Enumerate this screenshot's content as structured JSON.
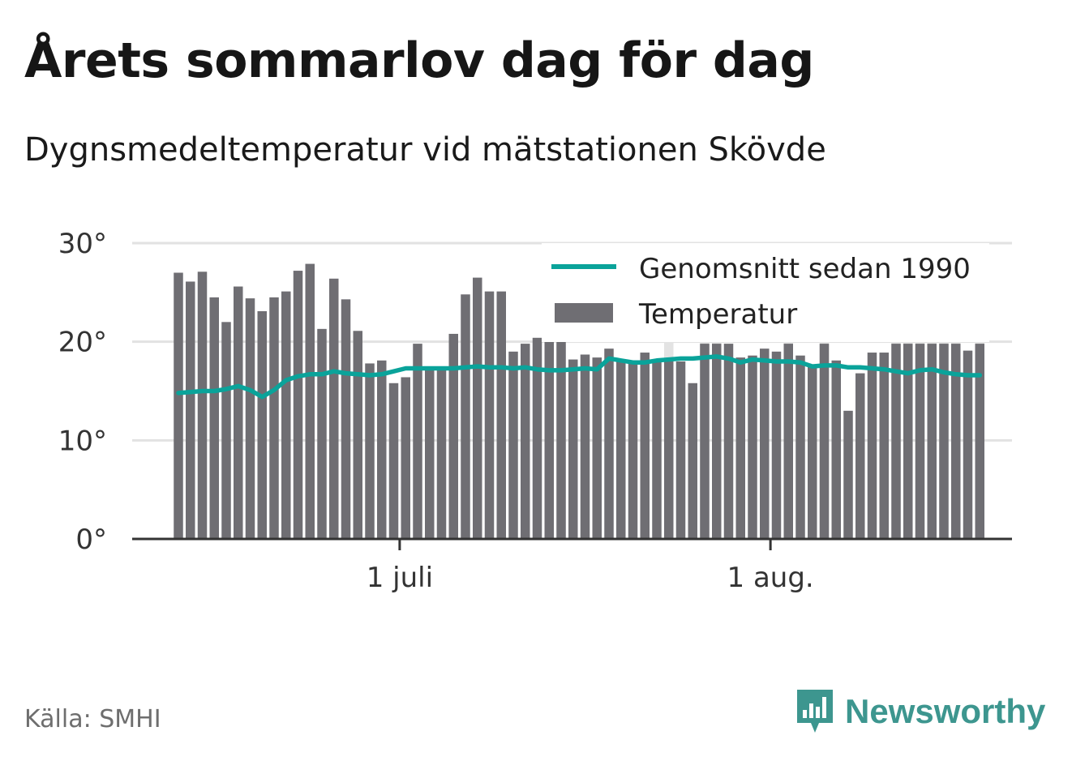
{
  "title": "Årets sommarlov dag för dag",
  "subtitle": "Dygnsmedeltemperatur vid mätstationen Skövde",
  "source": "Källa: SMHI",
  "brand": {
    "name": "Newsworthy",
    "icon": "newsworthy-logo-icon",
    "color": "#3d968f"
  },
  "colors": {
    "bar": "#6f6e73",
    "line": "#0aa39a",
    "ghost": "#e3e3e3",
    "grid": "#e2e2e2",
    "axis": "#333333"
  },
  "chart_data": {
    "type": "bar",
    "x_start": "2019-06-12",
    "yticks": [
      0,
      10,
      20,
      30
    ],
    "ytick_labels": [
      "0°",
      "10°",
      "20°",
      "30°"
    ],
    "ylim": [
      0,
      30
    ],
    "xticks": [
      {
        "date": "2019-07-01",
        "label": "1 juli"
      },
      {
        "date": "2019-08-01",
        "label": "1 aug."
      }
    ],
    "grid": true,
    "legend_position": "top-right",
    "series": [
      {
        "name": "Temperatur",
        "type": "bar",
        "values": [
          27.0,
          26.1,
          27.1,
          24.5,
          22.0,
          25.6,
          24.4,
          23.1,
          24.5,
          25.1,
          27.2,
          27.9,
          21.3,
          26.4,
          24.3,
          21.1,
          17.8,
          18.1,
          15.8,
          16.4,
          19.8,
          17.4,
          17.3,
          20.8,
          24.8,
          26.5,
          25.1,
          25.1,
          19.0,
          19.8,
          20.4,
          21.1,
          20.0,
          18.2,
          18.7,
          18.4,
          19.3,
          18.2,
          18.0,
          18.9,
          18.0,
          18.0,
          18.0,
          15.8,
          19.8,
          19.8,
          19.8,
          18.4,
          18.6,
          19.3,
          19.0,
          19.8,
          18.6,
          17.6,
          19.8,
          18.1,
          13.0,
          16.8,
          18.9,
          18.9,
          19.8,
          19.8,
          19.8,
          19.8,
          19.8,
          19.8,
          19.1,
          19.8
        ]
      },
      {
        "name": "Genomsnitt sedan 1990",
        "type": "line",
        "values": [
          14.8,
          14.9,
          15.0,
          15.0,
          15.2,
          15.5,
          15.1,
          14.4,
          15.1,
          16.1,
          16.5,
          16.7,
          16.7,
          17.0,
          16.8,
          16.7,
          16.6,
          16.7,
          17.0,
          17.3,
          17.3,
          17.3,
          17.3,
          17.3,
          17.4,
          17.5,
          17.4,
          17.4,
          17.3,
          17.4,
          17.2,
          17.1,
          17.1,
          17.2,
          17.3,
          17.2,
          18.3,
          18.1,
          17.9,
          17.9,
          18.1,
          18.2,
          18.3,
          18.3,
          18.4,
          18.5,
          18.3,
          17.9,
          18.2,
          18.1,
          18.0,
          18.0,
          17.9,
          17.5,
          17.6,
          17.6,
          17.4,
          17.4,
          17.3,
          17.2,
          17.0,
          16.8,
          17.1,
          17.2,
          16.9,
          16.7,
          16.6,
          16.6
        ]
      }
    ],
    "ghost_values": [
      null,
      null,
      null,
      null,
      null,
      null,
      null,
      null,
      null,
      null,
      null,
      null,
      null,
      null,
      null,
      null,
      null,
      null,
      null,
      null,
      null,
      null,
      null,
      null,
      null,
      null,
      null,
      null,
      null,
      null,
      null,
      null,
      21.3,
      null,
      null,
      null,
      null,
      null,
      null,
      null,
      null,
      20.4,
      null,
      null,
      22.0,
      20.7,
      null,
      null,
      null,
      null,
      null,
      22.0,
      null,
      null,
      21.0,
      null,
      null,
      null,
      null,
      null,
      21.5,
      21.5,
      22.5,
      21.3,
      20.0,
      20.0,
      null,
      22.2
    ]
  }
}
